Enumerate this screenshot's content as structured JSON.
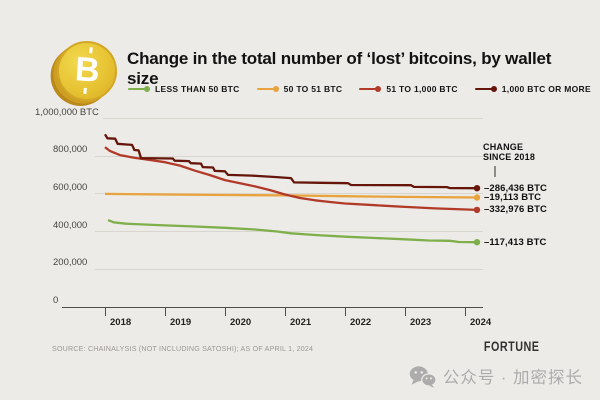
{
  "header": {
    "title": "Change in the total number of ‘lost’ bitcoins, by wallet size"
  },
  "annotation": {
    "line1": "CHANGE",
    "line2": "SINCE 2018"
  },
  "footer": {
    "source": "SOURCE: CHAINALYSIS (NOT INCLUDING SATOSHI); AS OF APRIL 1, 2024",
    "brand": "FORTUNE",
    "watermark": "公众号 · 加密探长",
    "watermark_icon": "wechat-icon"
  },
  "theme": {
    "background": "#ECEBE8",
    "gridline": "#D9D6D0",
    "axis": "#504D49"
  },
  "chart_data": {
    "type": "line",
    "title": "Change in the total number of ‘lost’ bitcoins, by wallet size",
    "xlabel": "",
    "ylabel": "BTC",
    "x_axis": {
      "ticks": [
        2018,
        2019,
        2020,
        2021,
        2022,
        2023,
        2024
      ],
      "range": [
        2018,
        2024.25
      ]
    },
    "y_axis": {
      "range": [
        0,
        1000000
      ],
      "grid": true,
      "ticks": [
        {
          "value": 1000000,
          "label": "1,000,000 BTC"
        },
        {
          "value": 800000,
          "label": "800,000"
        },
        {
          "value": 600000,
          "label": "600,000"
        },
        {
          "value": 400000,
          "label": "400,000"
        },
        {
          "value": 200000,
          "label": "200,000"
        },
        {
          "value": 0,
          "label": "0"
        }
      ]
    },
    "legend_position": "top",
    "series": [
      {
        "name": "LESS THAN 50 BTC",
        "color": "#7FAF4A",
        "change_since_2018": -117413,
        "end_label": "–117,413 BTC",
        "points": [
          [
            2018.05,
            461000
          ],
          [
            2018.15,
            449000
          ],
          [
            2018.35,
            442000
          ],
          [
            2018.7,
            437000
          ],
          [
            2019.0,
            433000
          ],
          [
            2019.5,
            427000
          ],
          [
            2020.0,
            420000
          ],
          [
            2020.5,
            411000
          ],
          [
            2020.85,
            401000
          ],
          [
            2021.1,
            391000
          ],
          [
            2021.5,
            382000
          ],
          [
            2022.0,
            373000
          ],
          [
            2022.5,
            366000
          ],
          [
            2023.0,
            359000
          ],
          [
            2023.4,
            353000
          ],
          [
            2023.75,
            351000
          ],
          [
            2023.9,
            345000
          ],
          [
            2024.2,
            344000
          ]
        ]
      },
      {
        "name": "50 TO 51 BTC",
        "color": "#E8A33D",
        "change_since_2018": -19113,
        "end_label": "–19,113 BTC",
        "points": [
          [
            2018.0,
            600000
          ],
          [
            2019.0,
            597000
          ],
          [
            2020.0,
            594000
          ],
          [
            2021.0,
            592000
          ],
          [
            2022.0,
            588000
          ],
          [
            2023.0,
            584000
          ],
          [
            2024.2,
            581000
          ]
        ]
      },
      {
        "name": "51 TO 1,000 BTC",
        "color": "#B13A28",
        "change_since_2018": -332976,
        "end_label": "–332,976 BTC",
        "points": [
          [
            2018.0,
            848000
          ],
          [
            2018.08,
            828000
          ],
          [
            2018.25,
            806000
          ],
          [
            2018.5,
            791000
          ],
          [
            2018.75,
            780000
          ],
          [
            2019.0,
            768000
          ],
          [
            2019.25,
            750000
          ],
          [
            2019.5,
            723000
          ],
          [
            2019.75,
            700000
          ],
          [
            2020.0,
            673000
          ],
          [
            2020.25,
            656000
          ],
          [
            2020.5,
            640000
          ],
          [
            2020.75,
            620000
          ],
          [
            2021.0,
            597000
          ],
          [
            2021.25,
            578000
          ],
          [
            2021.5,
            566000
          ],
          [
            2021.75,
            557000
          ],
          [
            2022.0,
            549000
          ],
          [
            2022.5,
            540000
          ],
          [
            2023.0,
            531000
          ],
          [
            2023.5,
            523000
          ],
          [
            2024.2,
            515000
          ]
        ]
      },
      {
        "name": "1,000 BTC OR MORE",
        "color": "#651509",
        "change_since_2018": -286436,
        "end_label": "–286,436 BTC",
        "points": [
          [
            2018.0,
            916000
          ],
          [
            2018.04,
            895000
          ],
          [
            2018.17,
            893000
          ],
          [
            2018.21,
            866000
          ],
          [
            2018.45,
            860000
          ],
          [
            2018.49,
            833000
          ],
          [
            2018.56,
            831000
          ],
          [
            2018.6,
            790000
          ],
          [
            2019.13,
            788000
          ],
          [
            2019.16,
            776000
          ],
          [
            2019.4,
            774000
          ],
          [
            2019.43,
            763000
          ],
          [
            2019.6,
            761000
          ],
          [
            2019.63,
            742000
          ],
          [
            2019.8,
            740000
          ],
          [
            2019.83,
            722000
          ],
          [
            2020.0,
            720000
          ],
          [
            2020.05,
            701000
          ],
          [
            2020.45,
            697000
          ],
          [
            2020.8,
            690000
          ],
          [
            2021.1,
            684000
          ],
          [
            2021.15,
            661000
          ],
          [
            2021.6,
            659000
          ],
          [
            2022.05,
            657000
          ],
          [
            2022.1,
            647000
          ],
          [
            2023.1,
            646000
          ],
          [
            2023.15,
            637000
          ],
          [
            2023.7,
            636000
          ],
          [
            2023.75,
            631000
          ],
          [
            2024.2,
            630000
          ]
        ]
      }
    ]
  }
}
